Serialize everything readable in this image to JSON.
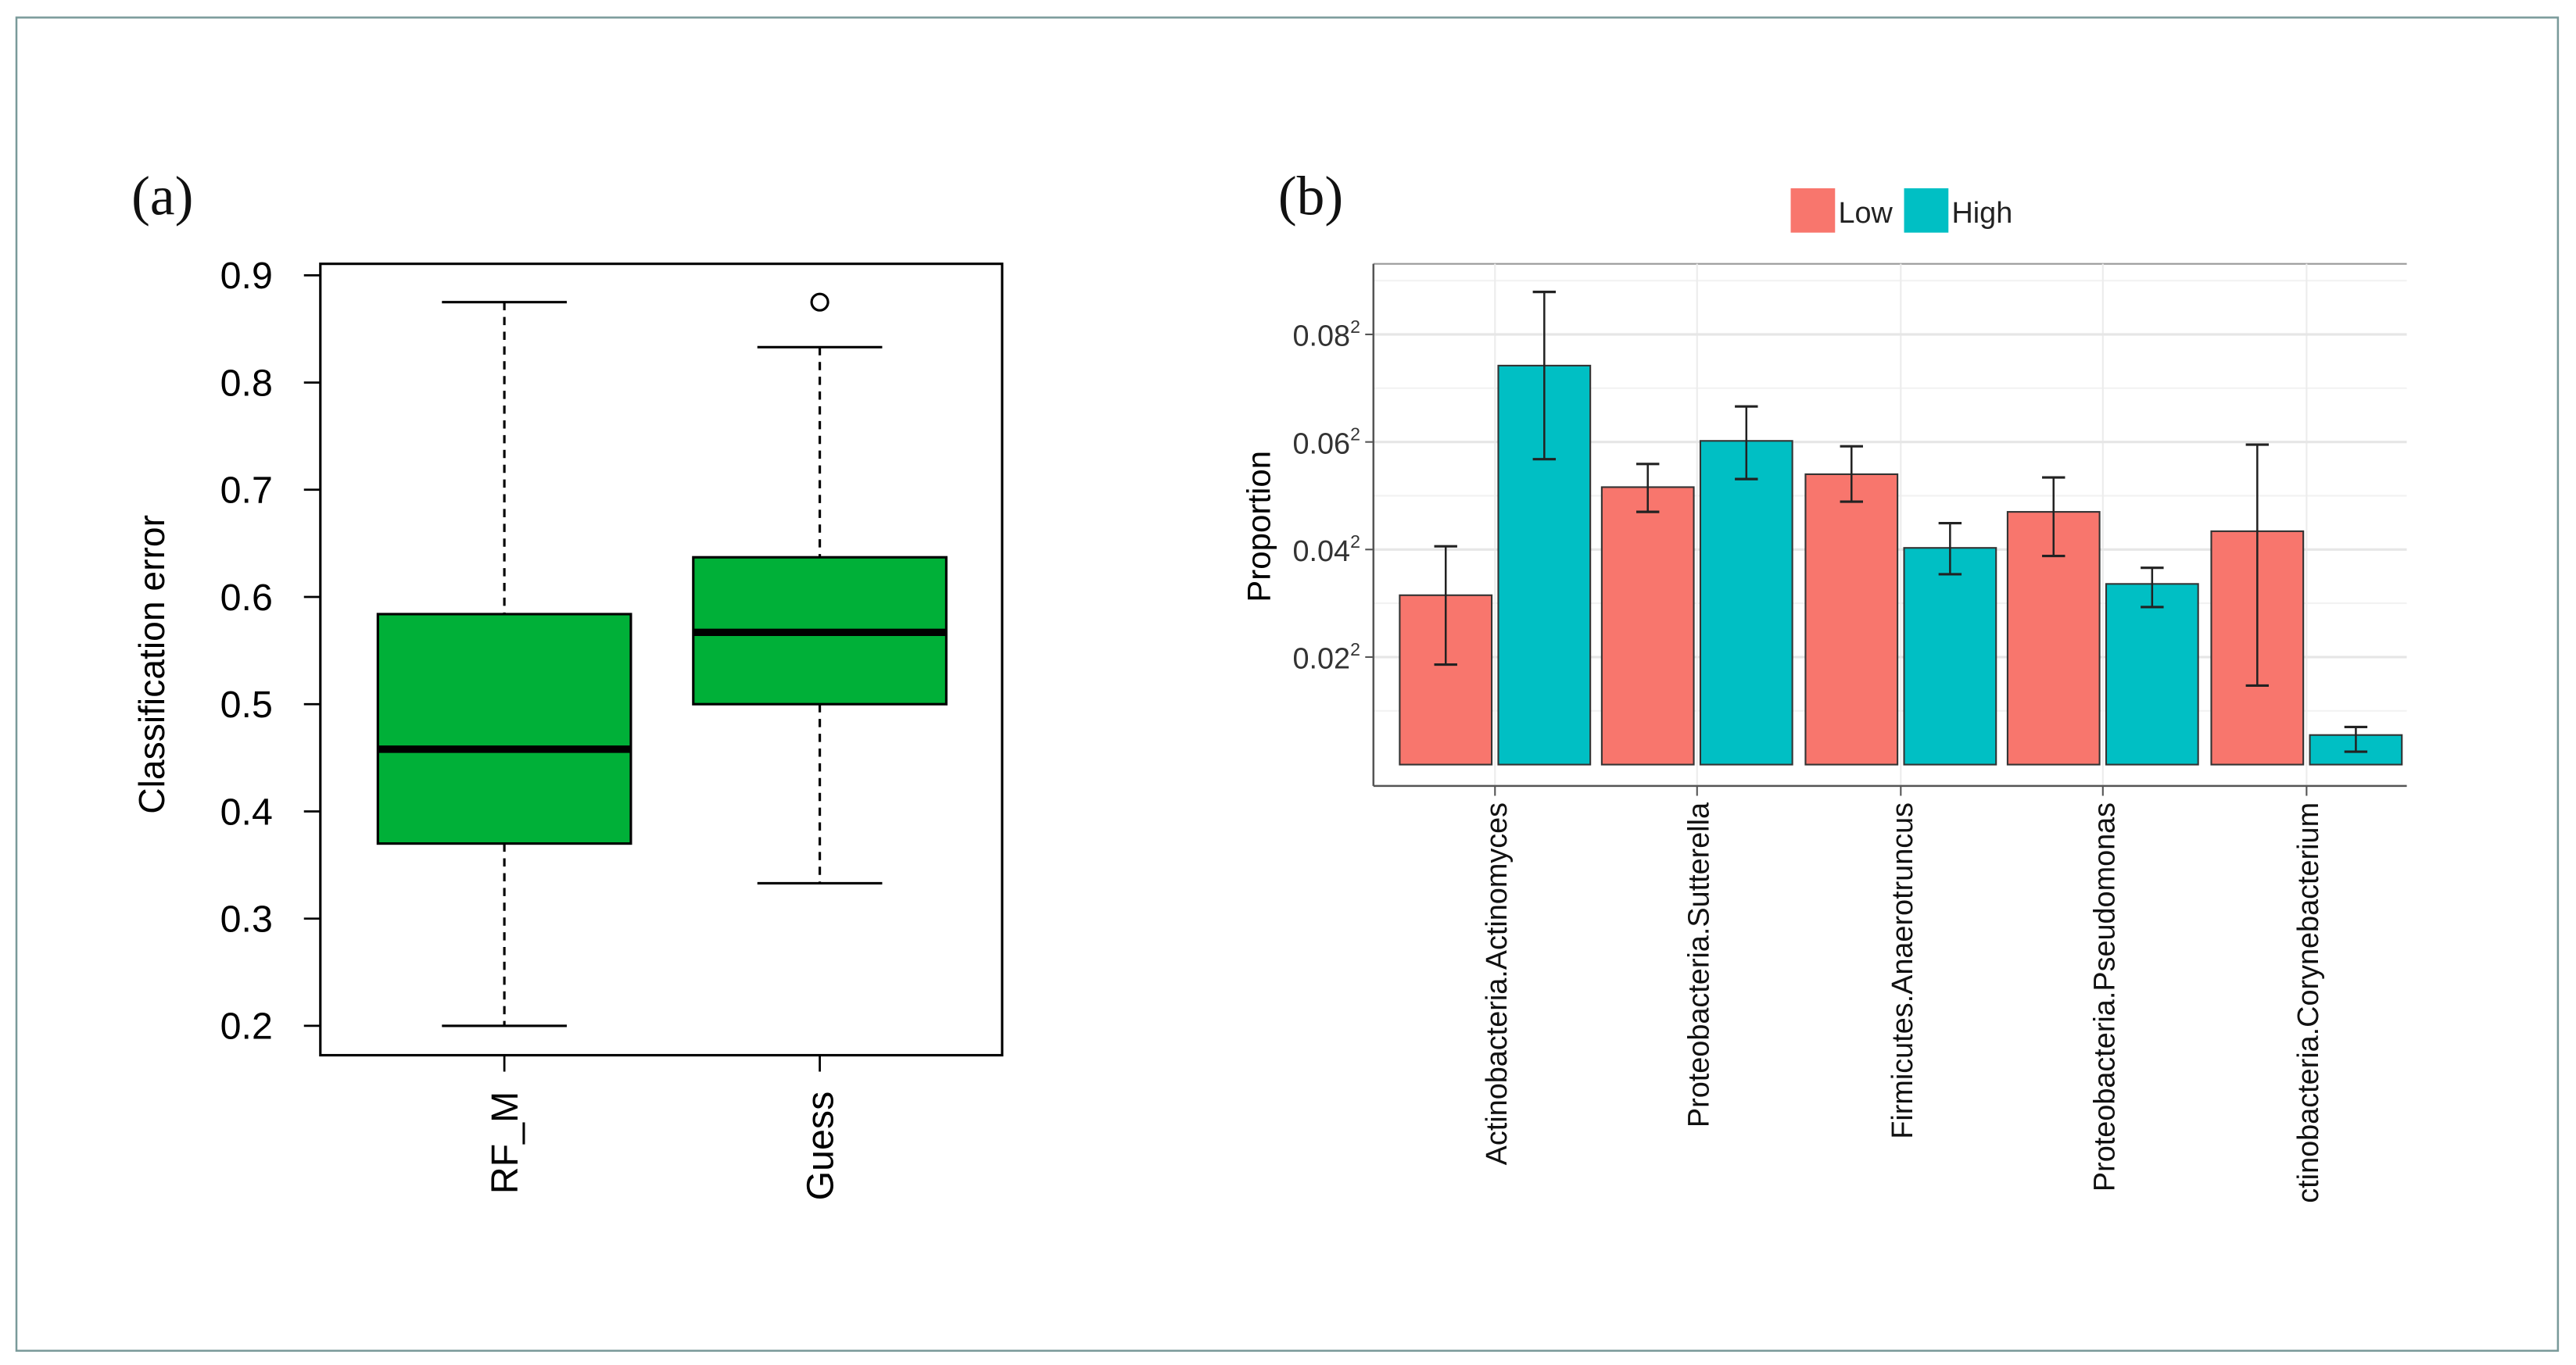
{
  "chart_data": [
    {
      "type": "box",
      "panel_label": "(a)",
      "ylabel": "Classification error",
      "xlabel": "",
      "ylim": [
        0.2,
        0.9
      ],
      "yticks": [
        "0.2",
        "0.3",
        "0.4",
        "0.5",
        "0.6",
        "0.7",
        "0.8",
        "0.9"
      ],
      "ytick_values": [
        0.2,
        0.3,
        0.4,
        0.5,
        0.6,
        0.7,
        0.8,
        0.9
      ],
      "fill_color": "#00b038",
      "categories": [
        "RF_M",
        "Guess"
      ],
      "boxes": [
        {
          "name": "RF_M",
          "whisker_low": 0.2,
          "q1": 0.37,
          "median": 0.458,
          "q3": 0.584,
          "whisker_high": 0.875,
          "outliers": []
        },
        {
          "name": "Guess",
          "whisker_low": 0.333,
          "q1": 0.5,
          "median": 0.567,
          "q3": 0.637,
          "whisker_high": 0.833,
          "outliers": [
            0.875
          ]
        }
      ]
    },
    {
      "type": "bar",
      "panel_label": "(b)",
      "ylabel": "Proportion",
      "xlabel": "",
      "ylim": [
        0,
        0.092
      ],
      "yticks": [
        "0.02",
        "0.04",
        "0.06",
        "0.08"
      ],
      "ytick_values": [
        0.02,
        0.04,
        0.06,
        0.08
      ],
      "ytick_superscript": "2",
      "grid": true,
      "legend_position": "top",
      "categories": [
        "Actinobacteria.Actinomyces",
        "Proteobacteria.Sutterella",
        "Firmicutes.Anaerotruncus",
        "Proteobacteria.Pseudomonas",
        "ctinobacteria.Corynebacterium"
      ],
      "series": [
        {
          "name": "Low",
          "color": "#f8766d",
          "values": [
            0.0315,
            0.0516,
            0.054,
            0.047,
            0.0434
          ],
          "err_low": [
            0.0186,
            0.047,
            0.0489,
            0.0388,
            0.0147
          ],
          "err_high": [
            0.0406,
            0.0559,
            0.0592,
            0.0534,
            0.0595
          ]
        },
        {
          "name": "High",
          "color": "#00bfc4",
          "values": [
            0.0742,
            0.0602,
            0.0403,
            0.0336,
            0.0055
          ],
          "err_low": [
            0.0568,
            0.0531,
            0.0354,
            0.0293,
            0.0024
          ],
          "err_high": [
            0.0879,
            0.0666,
            0.0449,
            0.0366,
            0.007
          ]
        }
      ]
    }
  ]
}
